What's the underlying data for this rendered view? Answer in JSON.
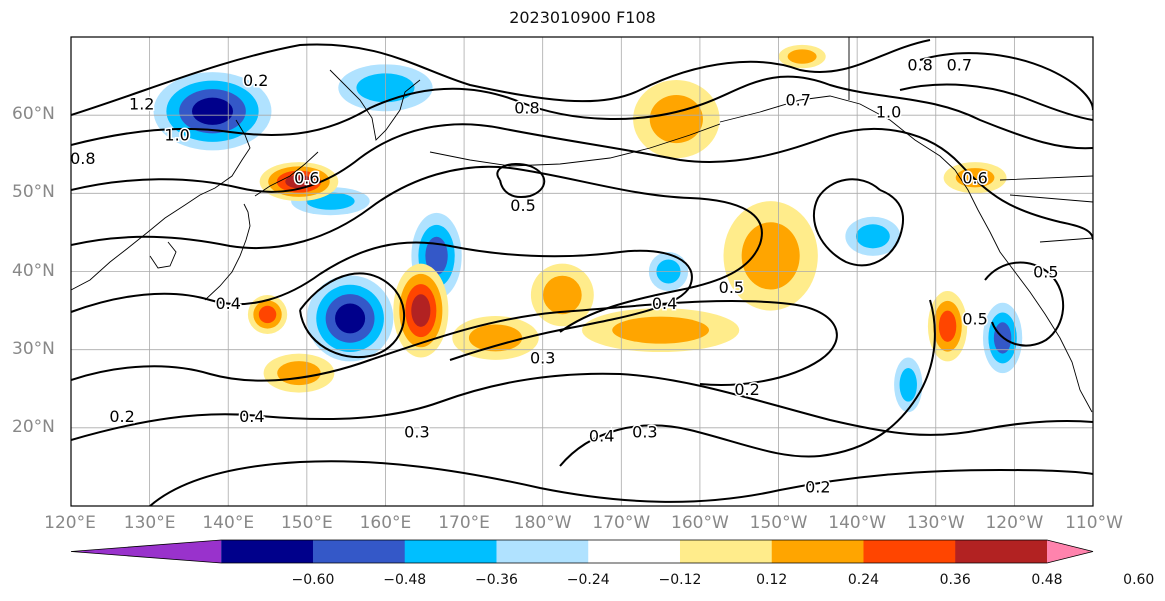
{
  "title": "2023010900 F108",
  "lat_labels": [
    {
      "text": "60°N",
      "lat": 60
    },
    {
      "text": "50°N",
      "lat": 50
    },
    {
      "text": "40°N",
      "lat": 40
    },
    {
      "text": "30°N",
      "lat": 30
    },
    {
      "text": "20°N",
      "lat": 20
    }
  ],
  "lon_labels": [
    "120°E",
    "130°E",
    "140°E",
    "150°E",
    "160°E",
    "170°E",
    "180°W",
    "170°W",
    "160°W",
    "150°W",
    "140°W",
    "130°W",
    "120°W",
    "110°W"
  ],
  "colorbar": {
    "colors": [
      "#9932cc",
      "#00008b",
      "#3458c8",
      "#00bfff",
      "#b0e2ff",
      "#ffffff",
      "#ffec8b",
      "#ffa500",
      "#ff4500",
      "#b22222",
      "#ff83ad"
    ],
    "ticks": [
      "−0.60",
      "−0.48",
      "−0.36",
      "−0.24",
      "−0.12",
      "0.12",
      "0.24",
      "0.36",
      "0.48",
      "0.60"
    ]
  },
  "contour_labels": [
    {
      "text": "1.2",
      "lon": 129,
      "lat": 61.5
    },
    {
      "text": "1.0",
      "lon": 133.5,
      "lat": 57.5
    },
    {
      "text": "0.8",
      "lon": 121.5,
      "lat": 54.5
    },
    {
      "text": "0.2",
      "lon": 143.5,
      "lat": 64.5
    },
    {
      "text": "0.8",
      "lon": 178,
      "lat": 61
    },
    {
      "text": "0.6",
      "lon": 150,
      "lat": 52
    },
    {
      "text": "0.5",
      "lon": 177.5,
      "lat": 48.5
    },
    {
      "text": "0.4",
      "lon": 140,
      "lat": 36
    },
    {
      "text": "0.4",
      "lon": -164.5,
      "lat": 36
    },
    {
      "text": "0.5",
      "lon": -156,
      "lat": 38
    },
    {
      "text": "0.3",
      "lon": -180,
      "lat": 29
    },
    {
      "text": "0.2",
      "lon": -154,
      "lat": 25
    },
    {
      "text": "0.3",
      "lon": -167,
      "lat": 19.5
    },
    {
      "text": "0.4",
      "lon": -172.5,
      "lat": 19
    },
    {
      "text": "0.3",
      "lon": 164,
      "lat": 19.5
    },
    {
      "text": "0.4",
      "lon": 143,
      "lat": 21.5
    },
    {
      "text": "0.2",
      "lon": 126.5,
      "lat": 21.5
    },
    {
      "text": "0.2",
      "lon": -145,
      "lat": 12.5
    },
    {
      "text": "0.8",
      "lon": -132,
      "lat": 66.5
    },
    {
      "text": "0.7",
      "lon": -127,
      "lat": 66.5
    },
    {
      "text": "1.0",
      "lon": -136,
      "lat": 60.5
    },
    {
      "text": "0.7",
      "lon": -147.5,
      "lat": 62
    },
    {
      "text": "0.6",
      "lon": -125,
      "lat": 52
    },
    {
      "text": "0.5",
      "lon": -116,
      "lat": 40
    },
    {
      "text": "0.5",
      "lon": -125,
      "lat": 34
    }
  ],
  "anomalies": [
    {
      "value": -0.5,
      "lon": 138,
      "lat": 60.5,
      "rx": 7.5,
      "ry": 5
    },
    {
      "value": -0.3,
      "lon": 160,
      "lat": 63.5,
      "rx": 6,
      "ry": 3
    },
    {
      "value": -0.3,
      "lon": 153,
      "lat": 49,
      "rx": 5,
      "ry": 1.8
    },
    {
      "value": -0.45,
      "lon": 166.5,
      "lat": 42,
      "rx": 3.2,
      "ry": 5.5
    },
    {
      "value": -0.55,
      "lon": 155.5,
      "lat": 34,
      "rx": 5.5,
      "ry": 5.5
    },
    {
      "value": 0.5,
      "lon": 149,
      "lat": 51.5,
      "rx": 5,
      "ry": 2.5
    },
    {
      "value": 0.4,
      "lon": 145,
      "lat": 34.5,
      "rx": 2.5,
      "ry": 2.5
    },
    {
      "value": 0.3,
      "lon": 149,
      "lat": 27,
      "rx": 4.5,
      "ry": 2.5
    },
    {
      "value": 0.5,
      "lon": 164.5,
      "lat": 35,
      "rx": 3.5,
      "ry": 6
    },
    {
      "value": 0.35,
      "lon": 174,
      "lat": 31.5,
      "rx": 5.5,
      "ry": 2.8
    },
    {
      "value": 0.35,
      "lon": -177.5,
      "lat": 37,
      "rx": 4,
      "ry": 4
    },
    {
      "value": 0.35,
      "lon": -165,
      "lat": 32.5,
      "rx": 10,
      "ry": 2.8
    },
    {
      "value": 0.35,
      "lon": -163,
      "lat": 59.5,
      "rx": 5.5,
      "ry": 5
    },
    {
      "value": 0.3,
      "lon": -151,
      "lat": 42,
      "rx": 6,
      "ry": 7
    },
    {
      "value": -0.3,
      "lon": -164,
      "lat": 40,
      "rx": 2.5,
      "ry": 2.5
    },
    {
      "value": -0.35,
      "lon": -138,
      "lat": 44.5,
      "rx": 3.5,
      "ry": 2.5
    },
    {
      "value": 0.45,
      "lon": -128.5,
      "lat": 33,
      "rx": 2.5,
      "ry": 4.5
    },
    {
      "value": -0.35,
      "lon": -133.5,
      "lat": 25.5,
      "rx": 1.8,
      "ry": 3.5
    },
    {
      "value": -0.45,
      "lon": -121.5,
      "lat": 31.5,
      "rx": 2.5,
      "ry": 4.5
    },
    {
      "value": 0.35,
      "lon": -125,
      "lat": 52,
      "rx": 4,
      "ry": 2
    },
    {
      "value": 0.3,
      "lon": -147,
      "lat": 67.5,
      "rx": 3,
      "ry": 1.5
    }
  ]
}
